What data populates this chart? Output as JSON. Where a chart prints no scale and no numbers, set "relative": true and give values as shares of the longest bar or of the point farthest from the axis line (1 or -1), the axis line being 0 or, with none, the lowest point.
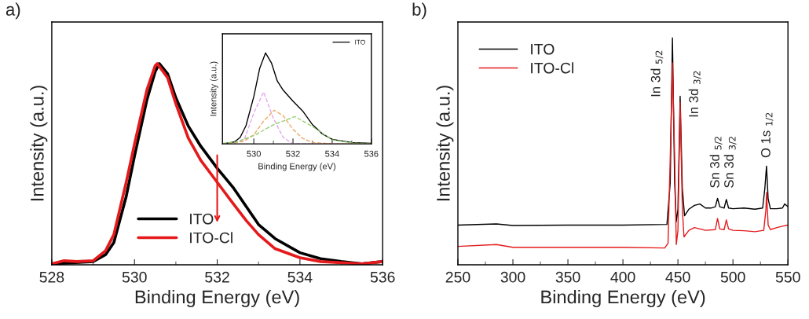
{
  "chart_data": [
    {
      "type": "line",
      "title": "a)",
      "xlabel": "Binding Energy (eV)",
      "ylabel": "Intensity (a.u.)",
      "relative": true,
      "tick_labels": "x",
      "legend": "bottom",
      "grid": false,
      "xlim": [
        528,
        536
      ],
      "xticks": [
        528,
        530,
        532,
        534,
        536
      ],
      "series": [
        {
          "name": "ITO",
          "color": "#000000",
          "x": [
            528,
            528.5,
            529,
            529.3,
            529.5,
            529.8,
            530,
            530.3,
            530.5,
            530.6,
            530.8,
            531,
            531.3,
            531.6,
            532,
            532.4,
            532.7,
            533,
            533.4,
            534,
            534.5,
            535,
            535.5,
            536
          ],
          "values": [
            0.005,
            0.01,
            0.016,
            0.05,
            0.11,
            0.34,
            0.54,
            0.82,
            0.96,
            1.0,
            0.95,
            0.83,
            0.69,
            0.59,
            0.48,
            0.38,
            0.29,
            0.2,
            0.13,
            0.06,
            0.03,
            0.016,
            0.005,
            0.016
          ]
        },
        {
          "name": "ITO-Cl",
          "color": "#e41a1c",
          "x": [
            528,
            528.3,
            528.6,
            529,
            529.3,
            529.5,
            529.8,
            530,
            530.3,
            530.5,
            530.55,
            530.8,
            531,
            531.3,
            531.6,
            532,
            532.4,
            532.7,
            533,
            533.4,
            534,
            534.5,
            535,
            535.5,
            536
          ],
          "values": [
            0.005,
            0.02,
            0.016,
            0.02,
            0.07,
            0.15,
            0.41,
            0.6,
            0.87,
            0.99,
            1.0,
            0.93,
            0.8,
            0.63,
            0.52,
            0.41,
            0.3,
            0.22,
            0.15,
            0.08,
            0.035,
            0.016,
            0.01,
            0.005,
            0.016
          ]
        }
      ]
    },
    {
      "type": "line",
      "xlabel": "Binding Energy (eV)",
      "ylabel": "Intensity (a.u.)",
      "relative": true,
      "tick_labels": "x",
      "legend": "top right",
      "grid": false,
      "xlim": [
        528.4,
        536
      ],
      "xticks": [
        530,
        532,
        534,
        536
      ],
      "series": [
        {
          "name": "ITO",
          "color": "#000000",
          "x": [
            528.4,
            529,
            529.3,
            529.6,
            530,
            530.3,
            530.6,
            530.9,
            531.2,
            531.5,
            532,
            532.5,
            533,
            533.5,
            534,
            535,
            536
          ],
          "values": [
            0,
            0.02,
            0.07,
            0.2,
            0.52,
            0.83,
            1.0,
            0.89,
            0.69,
            0.59,
            0.47,
            0.36,
            0.21,
            0.11,
            0.05,
            0.015,
            0.005
          ]
        },
        {
          "color": "#e4a8f0",
          "line_style": "dashed",
          "x": [
            528.4,
            529,
            529.5,
            530,
            530.5,
            531,
            531.5,
            532,
            533,
            534,
            536
          ],
          "values": [
            0,
            0.005,
            0.04,
            0.34,
            0.57,
            0.28,
            0.07,
            0,
            0,
            0,
            0
          ]
        },
        {
          "color": "#f0a868",
          "line_style": "dashed",
          "x": [
            528.4,
            529,
            529.5,
            530,
            530.5,
            531.04,
            531.5,
            532,
            532.5,
            533,
            534,
            536
          ],
          "values": [
            0,
            0.01,
            0.03,
            0.1,
            0.25,
            0.37,
            0.31,
            0.16,
            0.06,
            0.015,
            0,
            0
          ]
        },
        {
          "color": "#90d070",
          "line_style": "dashed",
          "x": [
            528.4,
            529,
            530,
            531,
            532.1,
            533,
            534,
            535,
            536
          ],
          "values": [
            0.005,
            0.015,
            0.09,
            0.21,
            0.3,
            0.19,
            0.045,
            0.01,
            0
          ]
        }
      ]
    },
    {
      "type": "line",
      "title": "b)",
      "xlabel": "Binding Energy (eV)",
      "ylabel": "Intensity (a.u.)",
      "relative": true,
      "tick_labels": "x",
      "legend": "top left",
      "grid": false,
      "xlim": [
        250,
        550
      ],
      "xticks": [
        250,
        300,
        350,
        400,
        450,
        500,
        550
      ],
      "annotations": [
        "In 3d $_{5/2}$",
        "In 3d $_{3/2}$",
        "Sn 3d $_{5/2}$",
        "Sn 3d $_{3/2}$",
        "O 1s $_{1/2}$"
      ],
      "series": [
        {
          "name": "ITO",
          "color": "#000000",
          "x": [
            250,
            285,
            300,
            350,
            400,
            440,
            443,
            445,
            447,
            448.5,
            450,
            452,
            454,
            456,
            460,
            465,
            470,
            475,
            480,
            484,
            486,
            488,
            492,
            494,
            496,
            500,
            510,
            520,
            527,
            529,
            530.5,
            532,
            534,
            540,
            545,
            547,
            550
          ],
          "values": [
            0.175,
            0.18,
            0.173,
            0.175,
            0.175,
            0.178,
            0.36,
            1.0,
            0.36,
            0.19,
            0.245,
            0.743,
            0.337,
            0.216,
            0.245,
            0.262,
            0.268,
            0.25,
            0.25,
            0.256,
            0.293,
            0.256,
            0.25,
            0.288,
            0.25,
            0.247,
            0.25,
            0.245,
            0.25,
            0.337,
            0.435,
            0.29,
            0.247,
            0.247,
            0.25,
            0.268,
            0.256
          ]
        },
        {
          "name": "ITO-Cl",
          "color": "#e41a1c",
          "x": [
            250,
            285,
            300,
            350,
            400,
            438,
            441,
            443,
            445,
            447,
            448.5,
            450,
            452,
            454,
            455.5,
            460,
            465,
            475,
            484,
            486,
            488,
            492,
            494,
            496,
            500,
            510,
            520,
            528,
            530,
            530.5,
            532,
            534,
            540,
            545,
            550
          ],
          "values": [
            0.081,
            0.089,
            0.077,
            0.077,
            0.077,
            0.074,
            0.095,
            0.475,
            0.89,
            0.475,
            0.089,
            0.152,
            0.717,
            0.245,
            0.123,
            0.152,
            0.164,
            0.152,
            0.155,
            0.204,
            0.158,
            0.155,
            0.198,
            0.158,
            0.152,
            0.15,
            0.146,
            0.152,
            0.245,
            0.32,
            0.175,
            0.155,
            0.164,
            0.17,
            0.175
          ]
        }
      ]
    }
  ]
}
